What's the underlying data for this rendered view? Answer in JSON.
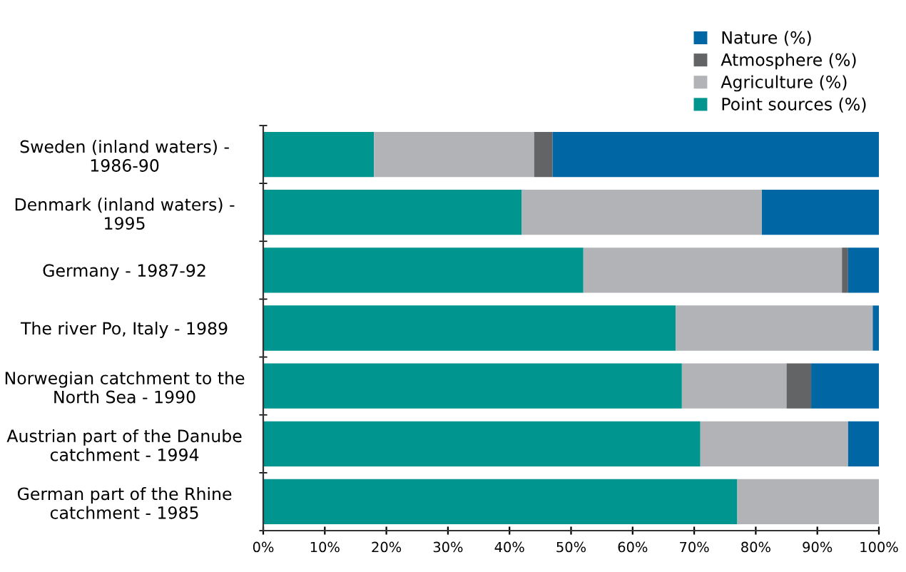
{
  "chart_data": {
    "type": "bar",
    "orientation": "horizontal",
    "stacked": true,
    "categories": [
      "Sweden (inland waters) -\n1986-90",
      "Denmark (inland waters) -\n1995",
      "Germany - 1987-92",
      "The river Po, Italy - 1989",
      "Norwegian catchment to the\nNorth Sea - 1990",
      "Austrian part of the Danube\ncatchment - 1994",
      "German part of the Rhine\ncatchment - 1985"
    ],
    "series": [
      {
        "name": "Point sources (%)",
        "color": "#00958f",
        "values": [
          18,
          42,
          52,
          67,
          68,
          71,
          77
        ]
      },
      {
        "name": "Agriculture (%)",
        "color": "#b2b3b6",
        "values": [
          26,
          39,
          42,
          32,
          17,
          24,
          23
        ]
      },
      {
        "name": "Atmosphere (%)",
        "color": "#636466",
        "values": [
          3,
          0,
          1,
          0,
          4,
          0,
          0
        ]
      },
      {
        "name": "Nature (%)",
        "color": "#0066a4",
        "values": [
          53,
          19,
          5,
          1,
          11,
          5,
          0
        ]
      }
    ],
    "xlim": [
      0,
      100
    ],
    "xticks": [
      {
        "value": 0,
        "label": "0%"
      },
      {
        "value": 10,
        "label": "10%"
      },
      {
        "value": 20,
        "label": "20%"
      },
      {
        "value": 30,
        "label": "30%"
      },
      {
        "value": 40,
        "label": "40%"
      },
      {
        "value": 50,
        "label": "50%"
      },
      {
        "value": 60,
        "label": "60%"
      },
      {
        "value": 70,
        "label": "70%"
      },
      {
        "value": 80,
        "label": "80%"
      },
      {
        "value": 90,
        "label": "90%"
      },
      {
        "value": 100,
        "label": "100%"
      }
    ],
    "grid": false,
    "legend": "top right"
  }
}
